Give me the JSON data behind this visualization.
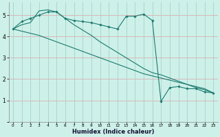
{
  "xlabel": "Humidex (Indice chaleur)",
  "bg_color": "#cdf0e8",
  "line_color": "#1a7a6e",
  "grid_color_x": "#a8d8d0",
  "grid_color_y": "#d8b8b8",
  "x": [
    0,
    1,
    2,
    3,
    4,
    5,
    6,
    7,
    8,
    9,
    10,
    11,
    12,
    13,
    14,
    15,
    16,
    17,
    18,
    19,
    20,
    21,
    22,
    23
  ],
  "line1_marked": [
    4.35,
    4.7,
    4.85,
    5.0,
    5.15,
    5.15,
    4.85,
    4.75,
    4.7,
    4.65,
    4.55,
    4.45,
    4.35,
    4.95,
    4.95,
    5.05,
    4.75,
    0.95,
    1.6,
    1.65,
    1.55,
    1.55,
    1.4,
    1.35
  ],
  "line2_straight": [
    4.35,
    4.25,
    4.15,
    4.05,
    3.9,
    3.75,
    3.6,
    3.45,
    3.3,
    3.15,
    3.0,
    2.85,
    2.7,
    2.55,
    2.4,
    2.25,
    2.15,
    2.05,
    1.95,
    1.85,
    1.75,
    1.65,
    1.55,
    1.35
  ],
  "line3_curve": [
    4.35,
    4.55,
    4.65,
    5.2,
    5.25,
    5.15,
    4.85,
    4.55,
    4.3,
    4.05,
    3.75,
    3.5,
    3.25,
    3.0,
    2.75,
    2.5,
    2.3,
    2.2,
    2.05,
    1.9,
    1.75,
    1.6,
    1.5,
    1.35
  ],
  "ylim": [
    0,
    5.6
  ],
  "xlim": [
    -0.5,
    23.5
  ],
  "yticks": [
    1,
    2,
    3,
    4,
    5
  ],
  "xticks": [
    0,
    1,
    2,
    3,
    4,
    5,
    6,
    7,
    8,
    9,
    10,
    11,
    12,
    13,
    14,
    15,
    16,
    17,
    18,
    19,
    20,
    21,
    22,
    23
  ]
}
